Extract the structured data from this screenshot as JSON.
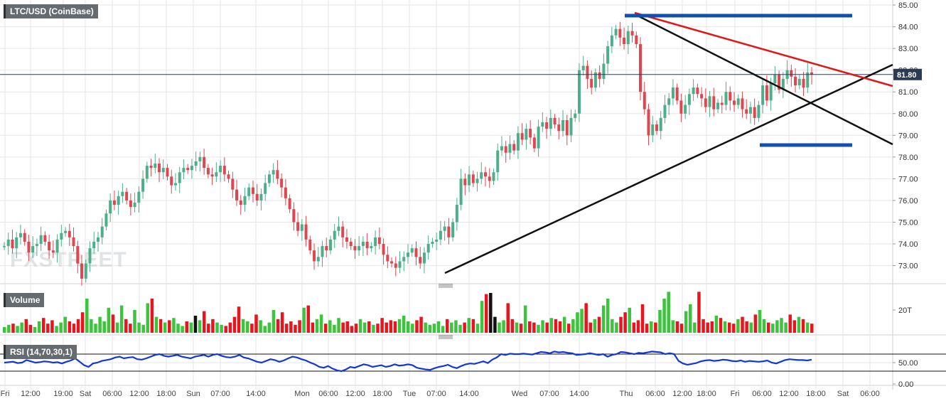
{
  "colors": {
    "up": "#4caf8a",
    "down": "#e0464f",
    "vol_up": "#3cc43c",
    "vol_down": "#e8141e",
    "vol_neutral": "#111111",
    "grid": "#e6e6e6",
    "rsi_line": "#1237d8",
    "support_resistance": "#1050b0",
    "red_trend": "#e01818",
    "black_trend": "#111111",
    "price_box": "#2b3a55"
  },
  "symbol_label": "LTC/USD (CoinBase)",
  "current_price_label": "81.80",
  "volume_label": "Volume",
  "volume_tick": "20T",
  "rsi_label": "RSI (14,70,30,1)",
  "rsi_ticks": [
    "50.00",
    "0.00"
  ],
  "watermark": "FXSTREET",
  "chart_data": {
    "type": "candlestick",
    "title": "LTC/USD (CoinBase)",
    "price_axis": {
      "ylim": [
        72.2,
        85.1
      ],
      "ticks": [
        73,
        74,
        75,
        76,
        77,
        78,
        79,
        80,
        81,
        82,
        83,
        84,
        85
      ],
      "tick_labels": [
        "73.00",
        "74.00",
        "75.00",
        "76.00",
        "77.00",
        "78.00",
        "79.00",
        "80.00",
        "81.00",
        "82.00",
        "83.00",
        "84.00",
        "85.00"
      ]
    },
    "time_axis": {
      "labels": [
        "Fri",
        "12:00",
        "19:00",
        "Sat",
        "06:00",
        "12:00",
        "18:00",
        "Sun",
        "07:00",
        "14:00",
        "Mon",
        "06:00",
        "12:00",
        "18:00",
        "Tue",
        "07:00",
        "14:00",
        "Wed",
        "07:00",
        "14:00",
        "Thu",
        "06:00",
        "12:00",
        "18:00",
        "Fri",
        "06:00",
        "12:00",
        "18:00",
        "Sat",
        "06:00"
      ]
    },
    "price_close": [
      73.9,
      74.2,
      73.8,
      74.3,
      74.5,
      74.1,
      73.6,
      73.9,
      74.0,
      74.4,
      74.1,
      73.7,
      73.6,
      74.2,
      74.5,
      74.6,
      74.3,
      73.9,
      73.1,
      72.4,
      73.1,
      73.8,
      74.1,
      74.3,
      74.8,
      75.4,
      76.0,
      75.8,
      76.2,
      76.4,
      76.0,
      75.7,
      75.9,
      76.4,
      77.0,
      77.6,
      77.5,
      77.7,
      77.3,
      77.5,
      77.1,
      76.7,
      76.8,
      77.3,
      77.5,
      77.4,
      77.6,
      77.8,
      78.0,
      77.5,
      77.2,
      77.1,
      77.3,
      77.6,
      77.2,
      77.0,
      76.5,
      76.0,
      75.8,
      76.2,
      76.6,
      76.3,
      76.0,
      76.3,
      76.8,
      77.2,
      77.4,
      77.0,
      76.6,
      76.1,
      75.6,
      75.0,
      74.6,
      74.9,
      74.2,
      73.7,
      73.2,
      73.4,
      73.9,
      73.7,
      74.2,
      74.6,
      74.8,
      74.3,
      74.1,
      73.9,
      73.7,
      73.9,
      74.1,
      73.8,
      73.9,
      74.3,
      74.0,
      73.5,
      73.2,
      73.1,
      72.9,
      73.2,
      73.4,
      73.6,
      73.8,
      73.4,
      73.1,
      73.6,
      74.0,
      74.1,
      74.2,
      74.6,
      74.8,
      74.3,
      75.0,
      75.8,
      77.0,
      76.7,
      77.2,
      76.8,
      77.0,
      77.3,
      77.1,
      76.9,
      77.3,
      78.3,
      78.5,
      78.2,
      78.6,
      78.3,
      79.1,
      78.8,
      79.3,
      78.9,
      78.4,
      79.4,
      79.6,
      79.3,
      79.8,
      79.5,
      79.2,
      79.7,
      79.0,
      79.8,
      80.0,
      82.0,
      82.2,
      81.6,
      81.2,
      81.9,
      81.6,
      82.3,
      83.1,
      83.6,
      83.9,
      83.5,
      83.2,
      83.8,
      83.6,
      83.2,
      81.0,
      80.2,
      79.0,
      79.5,
      79.2,
      79.8,
      80.4,
      80.7,
      81.2,
      80.6,
      80.0,
      80.4,
      80.9,
      81.2,
      80.9,
      80.7,
      80.3,
      80.8,
      80.2,
      80.5,
      80.4,
      81.0,
      80.6,
      80.4,
      80.7,
      80.2,
      80.0,
      80.3,
      79.8,
      80.4,
      81.3,
      80.6,
      81.4,
      81.8,
      81.1,
      81.6,
      82.0,
      81.7,
      81.3,
      81.6,
      81.2,
      81.9,
      81.8
    ],
    "price_series_name": "",
    "volume_values": [
      5,
      7,
      8,
      6,
      9,
      12,
      7,
      5,
      10,
      13,
      8,
      11,
      6,
      9,
      14,
      10,
      8,
      12,
      18,
      30,
      12,
      8,
      14,
      10,
      22,
      16,
      9,
      24,
      12,
      8,
      20,
      9,
      7,
      26,
      30,
      14,
      12,
      9,
      11,
      13,
      8,
      6,
      10,
      9,
      15,
      11,
      19,
      8,
      12,
      9,
      7,
      6,
      9,
      14,
      23,
      12,
      10,
      8,
      16,
      11,
      6,
      9,
      20,
      12,
      18,
      8,
      10,
      7,
      11,
      22,
      24,
      9,
      12,
      16,
      8,
      11,
      7,
      13,
      9,
      10,
      6,
      8,
      12,
      9,
      10,
      7,
      8,
      13,
      9,
      11,
      10,
      12,
      15,
      10,
      8,
      11,
      14,
      9,
      7,
      8,
      10,
      6,
      12,
      9,
      11,
      7,
      9,
      13,
      12,
      8,
      28,
      34,
      35,
      14,
      9,
      11,
      26,
      12,
      9,
      8,
      24,
      10,
      9,
      7,
      11,
      9,
      13,
      12,
      10,
      14,
      8,
      12,
      18,
      21,
      26,
      9,
      12,
      14,
      24,
      30,
      12,
      9,
      14,
      18,
      22,
      9,
      11,
      25,
      8,
      10,
      9,
      20,
      30,
      36,
      11,
      10,
      8,
      19,
      25,
      9,
      36,
      12,
      9,
      10,
      15,
      13,
      10,
      9,
      8,
      12,
      14,
      10,
      9,
      16,
      20,
      12,
      9,
      8,
      11,
      13,
      9,
      16,
      11,
      14,
      12,
      9,
      8
    ],
    "volume_series_name": "Volume",
    "rsi_values": [
      50,
      51,
      52,
      49,
      50,
      56,
      53,
      50,
      51,
      53,
      52,
      50,
      51,
      48,
      52,
      55,
      60,
      52,
      44,
      40,
      48,
      50,
      54,
      56,
      58,
      62,
      64,
      60,
      62,
      63,
      58,
      57,
      60,
      64,
      68,
      70,
      66,
      64,
      66,
      68,
      64,
      62,
      60,
      64,
      66,
      68,
      64,
      68,
      70,
      66,
      63,
      62,
      64,
      68,
      62,
      60,
      56,
      52,
      50,
      54,
      58,
      56,
      52,
      55,
      60,
      64,
      62,
      58,
      55,
      50,
      46,
      40,
      38,
      42,
      36,
      32,
      30,
      34,
      40,
      38,
      42,
      46,
      44,
      40,
      42,
      44,
      40,
      42,
      46,
      43,
      44,
      46,
      44,
      38,
      36,
      34,
      33,
      37,
      40,
      42,
      45,
      40,
      37,
      42,
      46,
      48,
      47,
      50,
      53,
      49,
      57,
      62,
      70,
      68,
      71,
      70,
      70,
      71,
      70,
      69,
      72,
      75,
      74,
      72,
      76,
      74,
      75,
      73,
      72,
      68,
      69,
      70,
      72,
      70,
      68,
      70,
      64,
      68,
      70,
      75,
      74,
      72,
      70,
      73,
      72,
      74,
      76,
      75,
      74,
      70,
      72,
      70,
      54,
      48,
      45,
      47,
      49,
      53,
      55,
      56,
      54,
      55,
      57,
      56,
      54,
      53,
      55,
      52,
      54,
      53,
      52,
      53,
      55,
      50,
      48,
      52,
      56,
      58,
      57,
      56,
      56,
      55,
      57
    ]
  }
}
